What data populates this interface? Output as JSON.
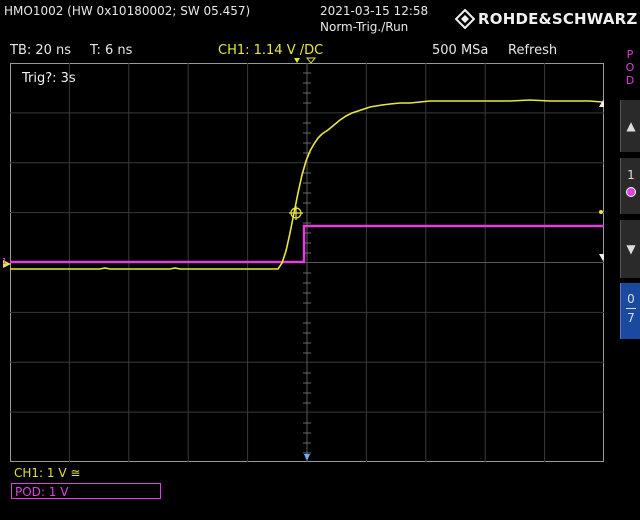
{
  "header": {
    "device": "HMO1002 (HW 0x10180002; SW 05.457)",
    "datetime": "2021-03-15 12:58",
    "mode": "Norm-Trig./Run",
    "logo_text": "ROHDE&SCHWARZ"
  },
  "info": {
    "timebase": "TB: 20 ns",
    "trigger_time": "T: 6 ns",
    "ch1_setting": "CH1: 1.14 V /DC",
    "sample_rate": "500 MSa",
    "refresh": "Refresh"
  },
  "screen": {
    "trig_status": "Trig?: 3s"
  },
  "sidebar": {
    "pod_label": [
      "P",
      "O",
      "D"
    ],
    "btn_up": "▲",
    "btn_one": "1",
    "btn_down": "▼",
    "btn_range": [
      "0",
      "7"
    ]
  },
  "footer": {
    "ch1": "CH1: 1 V ≅",
    "pod": "POD: 1 V",
    "pod_pattern": "_ ____"
  },
  "colors": {
    "ch1": "#e8e840",
    "pod": "#e040e0",
    "range_btn": "#1a4aa0"
  }
}
